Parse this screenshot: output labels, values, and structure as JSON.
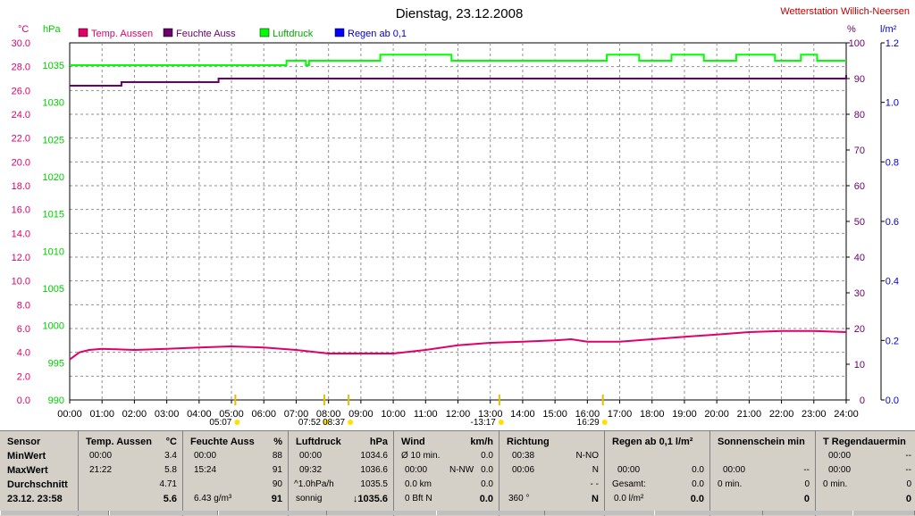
{
  "chart_data": {
    "type": "line",
    "title": "Dienstag, 23.12.2008",
    "station": "Wetterstation Willich-Neersen",
    "axis_units": {
      "temp": "°C",
      "pressure": "hPa",
      "humidity": "%",
      "rain": "l/m²"
    },
    "temp_ticks": [
      "30.0",
      "28.0",
      "26.0",
      "24.0",
      "22.0",
      "20.0",
      "18.0",
      "16.0",
      "14.0",
      "12.0",
      "10.0",
      "8.0",
      "6.0",
      "4.0",
      "2.0",
      "0.0"
    ],
    "pressure_ticks": [
      "1035",
      "1030",
      "1025",
      "1020",
      "1015",
      "1010",
      "1005",
      "1000",
      "995",
      "990"
    ],
    "humidity_ticks": [
      "100",
      "90",
      "80",
      "70",
      "60",
      "50",
      "40",
      "30",
      "20",
      "10",
      "0"
    ],
    "rain_ticks": [
      "1.2",
      "1.0",
      "0.8",
      "0.6",
      "0.4",
      "0.2",
      "0.0"
    ],
    "x_ticks": [
      "00:00",
      "01:00",
      "02:00",
      "03:00",
      "04:00",
      "05:00",
      "06:00",
      "07:00",
      "08:00",
      "09:00",
      "10:00",
      "11:00",
      "12:00",
      "13:00",
      "14:00",
      "15:00",
      "16:00",
      "17:00",
      "18:00",
      "19:00",
      "20:00",
      "21:00",
      "22:00",
      "23:00",
      "24:00"
    ],
    "ylim_temp": [
      0,
      30
    ],
    "ylim_pressure": [
      990,
      1038
    ],
    "ylim_humidity": [
      0,
      100
    ],
    "ylim_rain": [
      0,
      1.2
    ],
    "grid": true,
    "legend_position": "top-left",
    "series": [
      {
        "name": "Temp. Aussen",
        "color": "#e0006a",
        "axis": "temp",
        "x": [
          0,
          0.3,
          0.6,
          1,
          2,
          3,
          4,
          5,
          6,
          7,
          8,
          9,
          10,
          11,
          12,
          13,
          14,
          15,
          15.5,
          16,
          17,
          18,
          19,
          20,
          21,
          22,
          23,
          24
        ],
        "y": [
          3.4,
          4.0,
          4.2,
          4.3,
          4.2,
          4.3,
          4.4,
          4.5,
          4.4,
          4.2,
          3.9,
          3.9,
          3.9,
          4.2,
          4.6,
          4.8,
          4.9,
          5.0,
          5.1,
          4.9,
          4.9,
          5.1,
          5.3,
          5.5,
          5.7,
          5.8,
          5.8,
          5.7
        ]
      },
      {
        "name": "Feuchte Auss",
        "color": "#6a006a",
        "axis": "humidity",
        "x": [
          0,
          1.5,
          1.6,
          4.5,
          4.6,
          24
        ],
        "y": [
          88,
          88,
          89,
          89,
          90,
          91
        ]
      },
      {
        "name": "Luftdruck",
        "color": "#00ff00",
        "axis": "pressure",
        "x": [
          0,
          6.6,
          6.7,
          7.3,
          7.4,
          9.5,
          9.6,
          11.7,
          11.8,
          16.5,
          16.6,
          17.5,
          17.6,
          18.5,
          18.6,
          19.5,
          19.6,
          20.5,
          20.6,
          21.7,
          21.8,
          22.5,
          22.6,
          23.0,
          23.1,
          24
        ],
        "y": [
          1035.0,
          1035.0,
          1035.6,
          1035.0,
          1035.6,
          1035.6,
          1036.4,
          1036.4,
          1035.6,
          1035.6,
          1036.4,
          1036.4,
          1035.6,
          1035.6,
          1036.4,
          1036.4,
          1035.6,
          1035.6,
          1036.4,
          1036.4,
          1035.6,
          1035.6,
          1036.4,
          1036.4,
          1035.6,
          1035.6
        ]
      },
      {
        "name": "Regen ab 0,1",
        "color": "#0000ff",
        "axis": "rain",
        "x": [],
        "y": []
      }
    ],
    "markers": [
      {
        "label": "07:52",
        "hour": 7.87,
        "color": "#e0c000"
      },
      {
        "label": "05:07",
        "hour": 5.12,
        "color": "#e0c000"
      },
      {
        "label": "08:37",
        "hour": 8.62,
        "color": "#e0c000"
      },
      {
        "label": "-13:17",
        "hour": 13.28,
        "color": "#e0c000"
      },
      {
        "label": "16:29",
        "hour": 16.48,
        "color": "#e0c000"
      }
    ]
  },
  "table": {
    "rows": {
      "r1": "MinWert",
      "r2": "MaxWert",
      "r3": "Durchschnitt",
      "r4": "23.12.  23:58"
    },
    "sensor_header": "Sensor",
    "temp": {
      "title": "Temp. Aussen",
      "unit": "°C",
      "min_time": "00:00",
      "min_val": "3.4",
      "max_time": "21:22",
      "max_val": "5.8",
      "avg": "4.71",
      "cur": "5.6"
    },
    "hum": {
      "title": "Feuchte Auss",
      "unit": "%",
      "min_time": "00:00",
      "min_val": "88",
      "max_time": "15:24",
      "max_val": "91",
      "avg": "90",
      "abs": "6.43 g/m³",
      "cur": "91"
    },
    "press": {
      "title": "Luftdruck",
      "unit": "hPa",
      "min_time": "00:00",
      "min_val": "1034.6",
      "max_time": "09:32",
      "max_val": "1036.6",
      "trend": "^1.0hPa/h",
      "trend_val": "1035.5",
      "state": "sonnig",
      "cur": "↓1035.6"
    },
    "wind": {
      "title": "Wind",
      "unit": "km/h",
      "l1": "Ø 10 min.",
      "v1": "0.0",
      "l2_time": "00:00",
      "l2_dir": "N-NW",
      "v2": "0.0",
      "l3": "0.0 km",
      "v3": "0.0",
      "l4": "0 Bft N",
      "cur": "0.0"
    },
    "dir": {
      "title": "Richtung",
      "t1": "00:38",
      "d1": "N-NO",
      "t2": "00:06",
      "d2": "N",
      "d3": "- -",
      "deg": "360 °",
      "cur": "N"
    },
    "rain": {
      "title": "Regen ab 0,1  l/m²",
      "t2": "00:00",
      "v2": "0.0",
      "l3": "Gesamt:",
      "v3": "0.0",
      "l4": "0.0 l/m²",
      "cur": "0.0"
    },
    "sun": {
      "title": "Sonnenschein min",
      "t2": "00:00",
      "v2": "--",
      "l3": "0 min.",
      "v3": "0",
      "cur": "0"
    },
    "regdauer": {
      "title": "T Regendauermin",
      "t1": "00:00",
      "v1": "--",
      "t2": "00:00",
      "v2": "--",
      "l3": "0 min.",
      "v3": "0",
      "cur": "0"
    }
  }
}
